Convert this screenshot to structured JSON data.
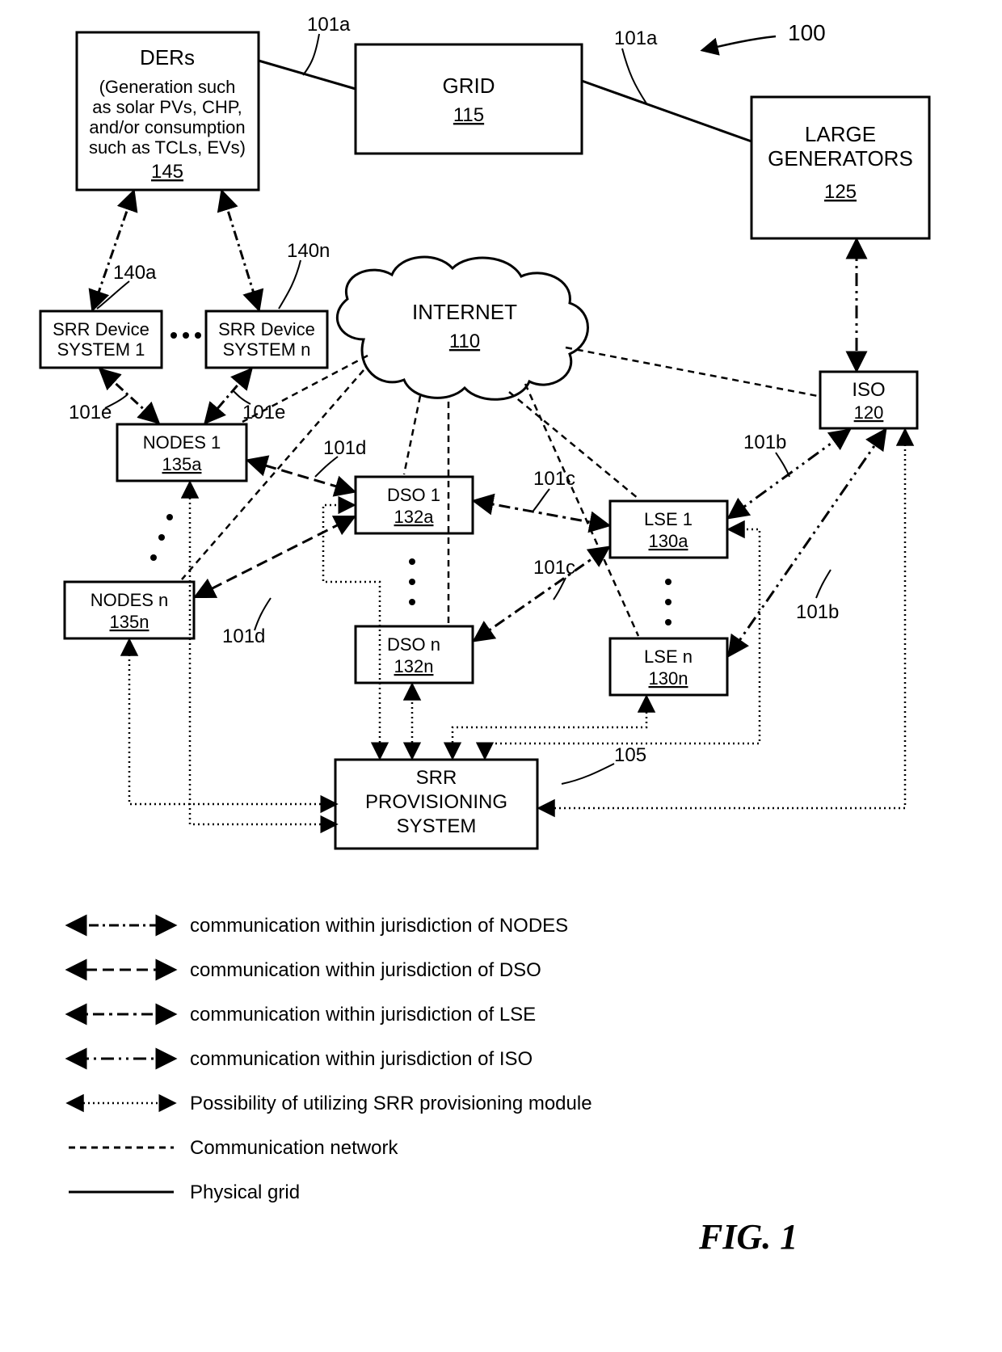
{
  "figure_label": "FIG. 1",
  "system_ref": "100",
  "colors": {
    "stroke": "#000000",
    "background": "#ffffff"
  },
  "stroke_width": 3,
  "nodes": {
    "ders": {
      "title": "DERs",
      "detail1": "(Generation such",
      "detail2": "as solar PVs, CHP,",
      "detail3": "and/or consumption",
      "detail4": "such as TCLs, EVs)",
      "ref": "145"
    },
    "grid": {
      "title": "GRID",
      "ref": "115"
    },
    "gens": {
      "title1": "LARGE",
      "title2": "GENERATORS",
      "ref": "125"
    },
    "srr1": {
      "title1": "SRR Device",
      "title2": "SYSTEM 1"
    },
    "srrn": {
      "title1": "SRR Device",
      "title2": "SYSTEM n"
    },
    "internet": {
      "title": "INTERNET",
      "ref": "110"
    },
    "iso": {
      "title": "ISO",
      "ref": "120"
    },
    "nodes1": {
      "title": "NODES 1",
      "ref": "135a"
    },
    "nodesn": {
      "title": "NODES n",
      "ref": "135n"
    },
    "dso1": {
      "title": "DSO 1",
      "ref": "132a"
    },
    "dson": {
      "title": "DSO n",
      "ref": "132n"
    },
    "lse1": {
      "title": "LSE 1",
      "ref": "130a"
    },
    "lsen": {
      "title": "LSE n",
      "ref": "130n"
    },
    "srrp": {
      "title1": "SRR",
      "title2": "PROVISIONING",
      "title3": "SYSTEM"
    }
  },
  "callouts": {
    "c101a_1": "101a",
    "c101a_2": "101a",
    "c140a": "140a",
    "c140n": "140n",
    "c101e_1": "101e",
    "c101e_2": "101e",
    "c101d_1": "101d",
    "c101d_2": "101d",
    "c101c_1": "101c",
    "c101c_2": "101c",
    "c101b_1": "101b",
    "c101b_2": "101b",
    "c105": "105"
  },
  "legend": [
    {
      "pattern": "12,5,3,5",
      "text": "communication within jurisdiction of NODES",
      "arrows": true
    },
    {
      "pattern": "14,7",
      "text": "communication within jurisdiction of DSO",
      "arrows": true
    },
    {
      "pattern": "14,6,4,6",
      "text": "communication within jurisdiction of LSE",
      "arrows": true
    },
    {
      "pattern": "16,6,3,6,3,6",
      "text": "communication within jurisdiction of ISO",
      "arrows": true
    },
    {
      "pattern": "2,4",
      "text": "Possibility of utilizing SRR provisioning module",
      "arrows": true
    },
    {
      "pattern": "8,6",
      "text": "Communication network",
      "arrows": false
    },
    {
      "pattern": "",
      "text": "Physical grid",
      "arrows": false
    }
  ]
}
